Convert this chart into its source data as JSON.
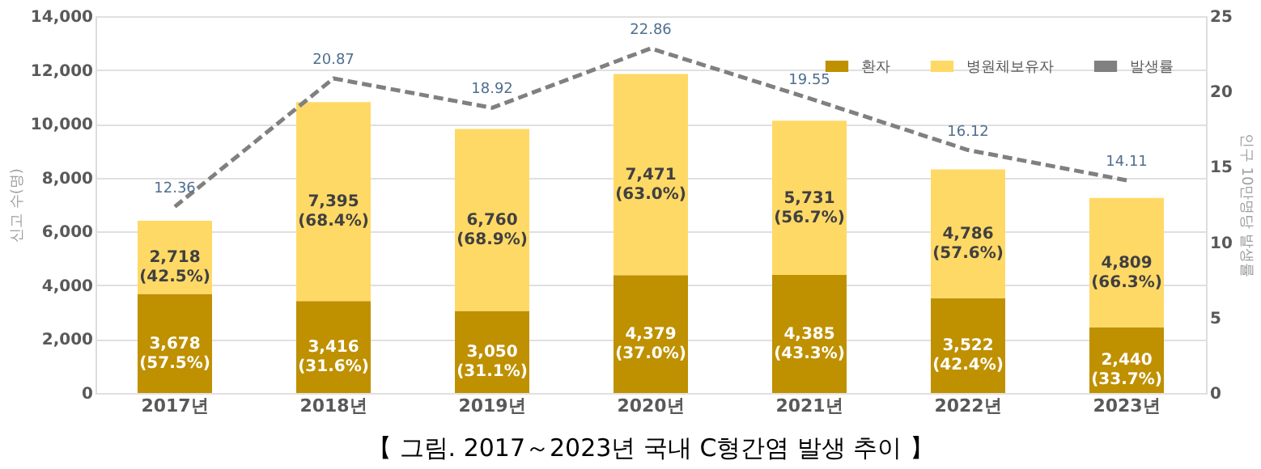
{
  "chart_data": {
    "type": "bar",
    "title": "【 그림. 2017～2023년 국내 C형간염 발생 추이 】",
    "ylabel": "신고 수(명)",
    "y2label": "인구 10만명당 발생률",
    "categories": [
      "2017년",
      "2018년",
      "2019년",
      "2020년",
      "2021년",
      "2022년",
      "2023년"
    ],
    "stacked": true,
    "series": [
      {
        "name": "환자",
        "color": "#bf9000",
        "values": [
          3678,
          3416,
          3050,
          4379,
          4385,
          3522,
          2440
        ],
        "value_labels": [
          "3,678 (57.5%)",
          "3,416 (31.6%)",
          "3,050 (31.1%)",
          "4,379 (37.0%)",
          "4,385 (43.3%)",
          "3,522 (42.4%)",
          "2,440 (33.7%)"
        ]
      },
      {
        "name": "병원체보유자",
        "color": "#ffd966",
        "values": [
          2718,
          7395,
          6760,
          7471,
          5731,
          4786,
          4809
        ],
        "value_labels": [
          "2,718 (42.5%)",
          "7,395 (68.4%)",
          "6,760 (68.9%)",
          "7,471 (63.0%)",
          "5,731 (56.7%)",
          "4,786 (57.6%)",
          "4,809 (66.3%)"
        ]
      },
      {
        "name": "발생률",
        "type": "line",
        "axis": "y2",
        "color": "#808080",
        "line_style": "dashed",
        "values": [
          12.36,
          20.87,
          18.92,
          22.86,
          19.55,
          16.12,
          14.11
        ],
        "value_labels": [
          "12.36",
          "20.87",
          "18.92",
          "22.86",
          "19.55",
          "16.12",
          "14.11"
        ]
      }
    ],
    "ylim": [
      0,
      14000
    ],
    "yticks": [
      {
        "value": 0,
        "label": "0"
      },
      {
        "value": 2000,
        "label": "2,000"
      },
      {
        "value": 4000,
        "label": "4,000"
      },
      {
        "value": 6000,
        "label": "6,000"
      },
      {
        "value": 8000,
        "label": "8,000"
      },
      {
        "value": 10000,
        "label": "10,000"
      },
      {
        "value": 12000,
        "label": "12,000"
      },
      {
        "value": 14000,
        "label": "14,000"
      }
    ],
    "y2lim": [
      0,
      25
    ],
    "y2ticks": [
      0,
      5,
      10,
      15,
      20,
      25
    ],
    "grid": "y",
    "legend": "top right",
    "marker": "none"
  }
}
